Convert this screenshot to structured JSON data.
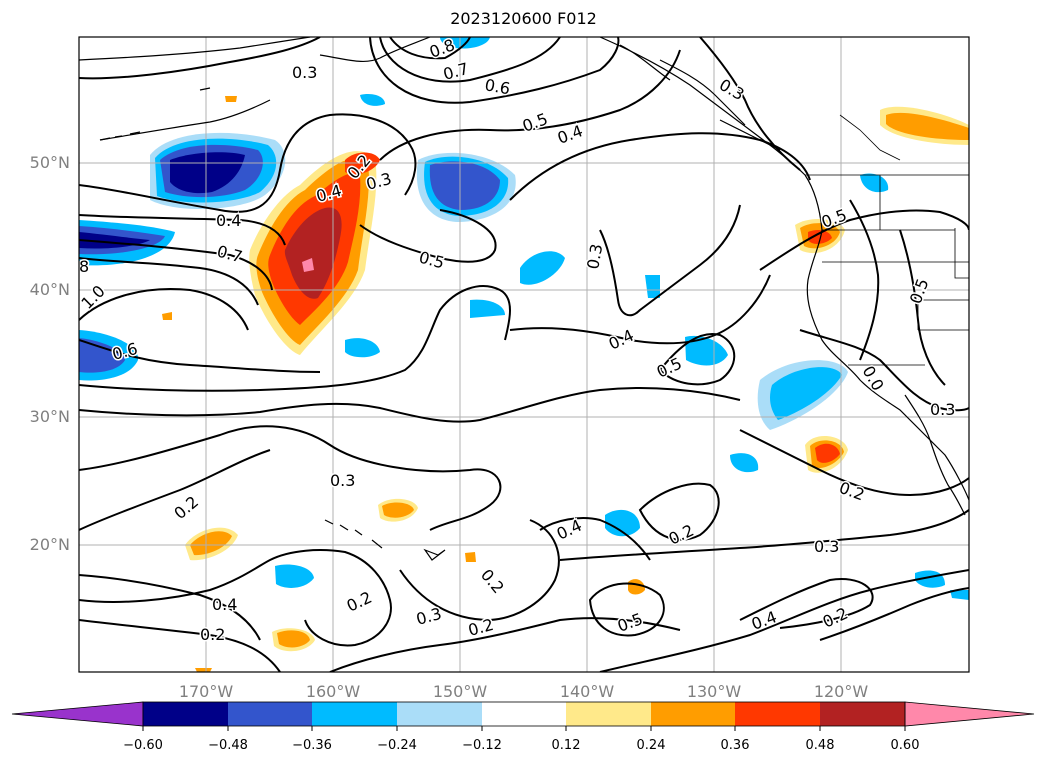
{
  "title": "2023120600 F012",
  "map": {
    "projection": "PlateCarree",
    "extent": {
      "lon_min": -180,
      "lon_max": -110,
      "lat_min": 10,
      "lat_max": 60
    },
    "lat_labels": [
      "50°N",
      "40°N",
      "30°N",
      "20°N"
    ],
    "lat_values": [
      50,
      40,
      30,
      20
    ],
    "lon_labels": [
      "170°W",
      "160°W",
      "150°W",
      "140°W",
      "130°W",
      "120°W"
    ],
    "lon_values": [
      -170,
      -160,
      -150,
      -140,
      -130,
      -120
    ]
  },
  "contour_labels": [
    "0.3",
    "0.8",
    "0.7",
    "0.6",
    "0.3",
    "0.5",
    "0.4",
    "0.2",
    "0.3",
    "0.4",
    "0.7",
    "0.4",
    "8",
    "1.0",
    "0.6",
    "0.5",
    "0.3",
    "0.5",
    "0.5",
    "0.4",
    "0.5",
    "0.3",
    "0.3",
    "0.2",
    "0.4",
    "0.2",
    "0.3",
    "0.2",
    "0.2",
    "0.4",
    "0.2",
    "0.3",
    "0.2",
    "0.5",
    "0.4",
    "0.2",
    "0.2",
    "0.0"
  ],
  "colorbar": {
    "ticks": [
      "−0.60",
      "−0.48",
      "−0.36",
      "−0.24",
      "−0.12",
      "0.12",
      "0.24",
      "0.36",
      "0.48",
      "0.60"
    ],
    "colors": [
      "#9933cc",
      "#000088",
      "#3355cc",
      "#00bbff",
      "#aaddf8",
      "#ffffff",
      "#ffe98a",
      "#ff9d00",
      "#ff3800",
      "#b22222",
      "#ff88aa"
    ]
  },
  "colors": {
    "neg_strong": "#3355cc",
    "neg_mid": "#00bbff",
    "neg_weak": "#aaddf8",
    "neg_darkest": "#000088",
    "pos_weak": "#ffe98a",
    "pos_mid": "#ff9d00",
    "pos_strong": "#ff3800",
    "pos_darker": "#b22222",
    "pos_peak": "#ff88aa"
  }
}
